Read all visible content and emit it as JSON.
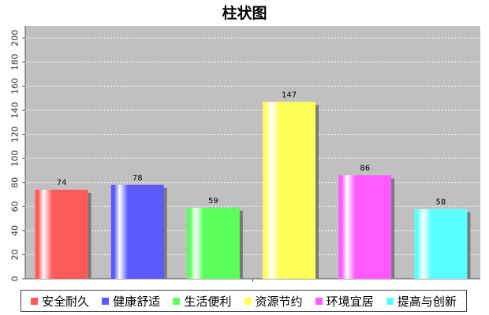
{
  "chart_data": {
    "type": "bar",
    "title": "柱状图",
    "categories": [
      "安全耐久",
      "健康舒适",
      "生活便利",
      "资源节约",
      "环境宜居",
      "提高与创新"
    ],
    "values": [
      74,
      78,
      59,
      147,
      86,
      58
    ],
    "colors": [
      "#ff5a5a",
      "#5a5aff",
      "#5aff5a",
      "#ffff5a",
      "#ff5aff",
      "#5affff"
    ],
    "ylim": [
      0,
      210
    ],
    "yticks": [
      0,
      20,
      40,
      60,
      80,
      100,
      120,
      140,
      160,
      180,
      200
    ],
    "plot_background": "#c0c0c0",
    "grid": true,
    "legend_position": "bottom",
    "xlabel": "",
    "ylabel": ""
  }
}
